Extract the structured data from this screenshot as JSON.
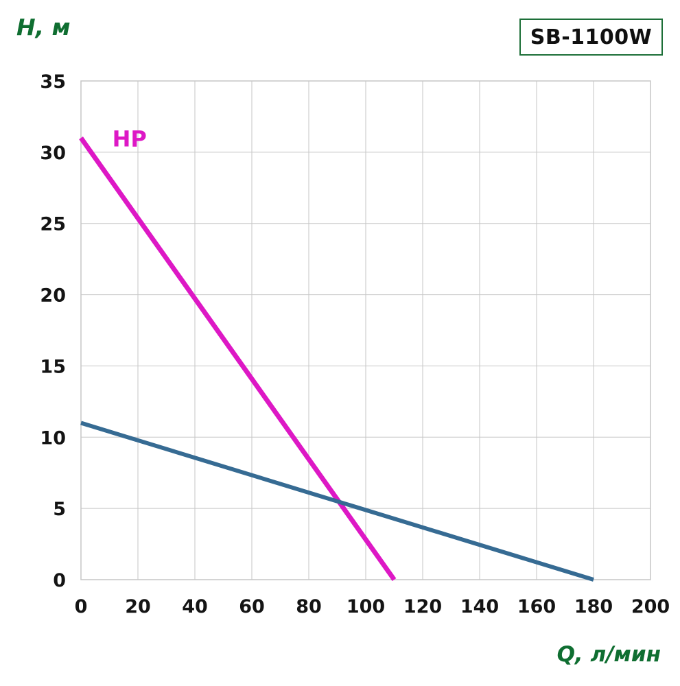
{
  "badge": {
    "label": "SB-1100W"
  },
  "colors": {
    "axis_title": "#0f6e31",
    "badge_border": "#1d6f38",
    "hp_line": "#dd18c5",
    "secondary_line": "#366b93",
    "grid": "#c6c6c6",
    "tick_text": "#141414",
    "background": "#ffffff"
  },
  "chart_data": {
    "type": "line",
    "title": "",
    "xlabel": "Q, л/мин",
    "ylabel": "H, м",
    "xlim": [
      0,
      200
    ],
    "ylim": [
      0,
      35
    ],
    "x_ticks": [
      0,
      20,
      40,
      60,
      80,
      100,
      120,
      140,
      160,
      180,
      200
    ],
    "y_ticks": [
      0,
      5,
      10,
      15,
      20,
      25,
      30,
      35
    ],
    "grid": true,
    "grid_color": "#c6c6c6",
    "legend_position": "none",
    "series": [
      {
        "name": "HP",
        "color": "#dd18c5",
        "width": 7,
        "points": [
          [
            0,
            31
          ],
          [
            110,
            0
          ]
        ]
      },
      {
        "name": "",
        "color": "#366b93",
        "width": 6,
        "points": [
          [
            0,
            11
          ],
          [
            180,
            0
          ]
        ]
      }
    ],
    "annotations": [
      {
        "text": "HP",
        "x": 11,
        "y": 30.4,
        "color": "#dd18c5"
      }
    ]
  }
}
